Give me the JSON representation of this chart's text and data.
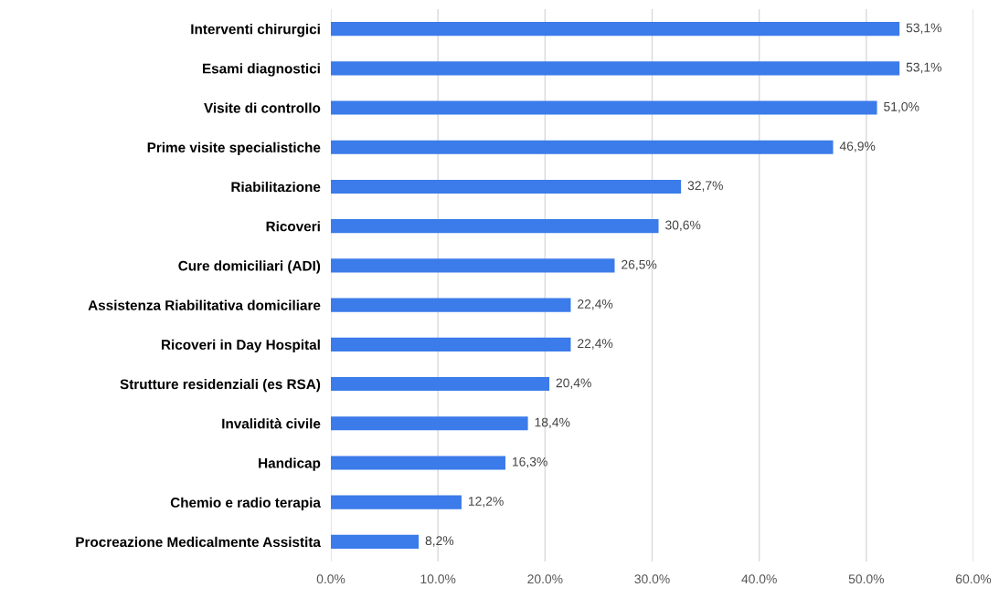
{
  "chart_data": {
    "type": "bar",
    "orientation": "horizontal",
    "categories": [
      "Interventi chirurgici",
      "Esami diagnostici",
      "Visite di controllo",
      "Prime visite specialistiche",
      "Riabilitazione",
      "Ricoveri",
      "Cure domiciliari (ADI)",
      "Assistenza Riabilitativa domiciliare",
      "Ricoveri in Day Hospital",
      "Strutture residenziali (es RSA)",
      "Invalidità civile",
      "Handicap",
      "Chemio e radio terapia",
      "Procreazione Medicalmente Assistita"
    ],
    "values": [
      53.1,
      53.1,
      51.0,
      46.9,
      32.7,
      30.6,
      26.5,
      22.4,
      22.4,
      20.4,
      18.4,
      16.3,
      12.2,
      8.2
    ],
    "value_labels": [
      "53,1%",
      "53,1%",
      "51,0%",
      "46,9%",
      "32,7%",
      "30,6%",
      "26,5%",
      "22,4%",
      "22,4%",
      "20,4%",
      "18,4%",
      "16,3%",
      "12,2%",
      "8,2%"
    ],
    "color": "#3b7bea",
    "xlim": [
      0,
      60
    ],
    "xticks": [
      {
        "value": 0,
        "label": "0.0%"
      },
      {
        "value": 10,
        "label": "10.0%"
      },
      {
        "value": 20,
        "label": "20.0%"
      },
      {
        "value": 30,
        "label": "30.0%"
      },
      {
        "value": 40,
        "label": "40.0%"
      },
      {
        "value": 50,
        "label": "50.0%"
      },
      {
        "value": 60,
        "label": "60.0%"
      }
    ],
    "grid": "x",
    "legend": false
  }
}
